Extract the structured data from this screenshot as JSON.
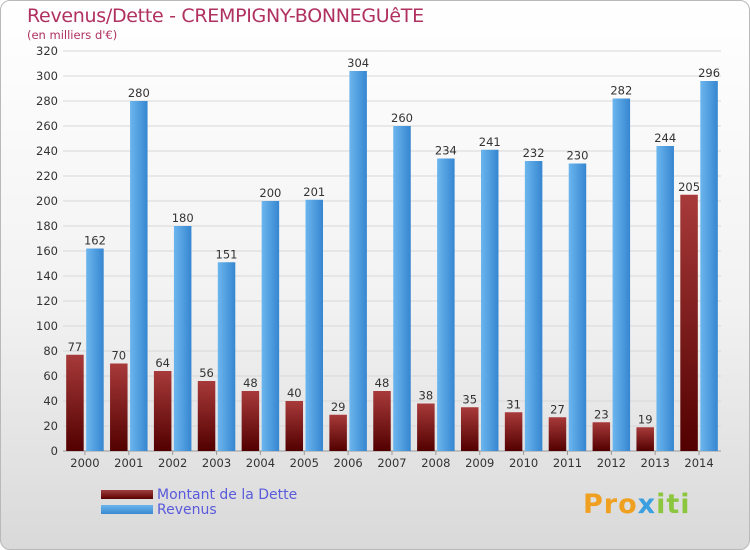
{
  "header": {
    "title": "Revenus/Dette - CREMPIGNY-BONNEGUêTE",
    "subtitle": "(en milliers d'€)"
  },
  "legend": {
    "dette_label": "Montant de la Dette",
    "revenus_label": "Revenus"
  },
  "brand": {
    "logo_text": "Proxiti",
    "parts": [
      "Pro",
      "x",
      "iti"
    ],
    "colors": [
      "#f0a020",
      "#3aa0e0",
      "#8cc63f"
    ]
  },
  "colors": {
    "dette_top": "#a83a3a",
    "dette_bottom": "#520000",
    "revenus_top": "#6cb6ee",
    "revenus_bottom": "#3686d0",
    "grid": "#d8d8d8",
    "axis_text": "#333333"
  },
  "chart_data": {
    "type": "bar",
    "title": "Revenus/Dette - CREMPIGNY-BONNEGUêTE",
    "ylabel": "(en milliers d'€)",
    "xlabel": "",
    "ylim": [
      0,
      320
    ],
    "yticks": [
      0,
      20,
      40,
      60,
      80,
      100,
      120,
      140,
      160,
      180,
      200,
      220,
      240,
      260,
      280,
      300,
      320
    ],
    "grid": true,
    "legend_position": "bottom-left",
    "categories": [
      "2000",
      "2001",
      "2002",
      "2003",
      "2004",
      "2005",
      "2006",
      "2007",
      "2008",
      "2009",
      "2010",
      "2011",
      "2012",
      "2013",
      "2014"
    ],
    "series": [
      {
        "name": "Montant de la Dette",
        "values": [
          77,
          70,
          64,
          56,
          48,
          40,
          29,
          48,
          38,
          35,
          31,
          27,
          23,
          19,
          205
        ]
      },
      {
        "name": "Revenus",
        "values": [
          162,
          280,
          180,
          151,
          200,
          201,
          304,
          260,
          234,
          241,
          232,
          230,
          282,
          244,
          296
        ]
      }
    ]
  }
}
